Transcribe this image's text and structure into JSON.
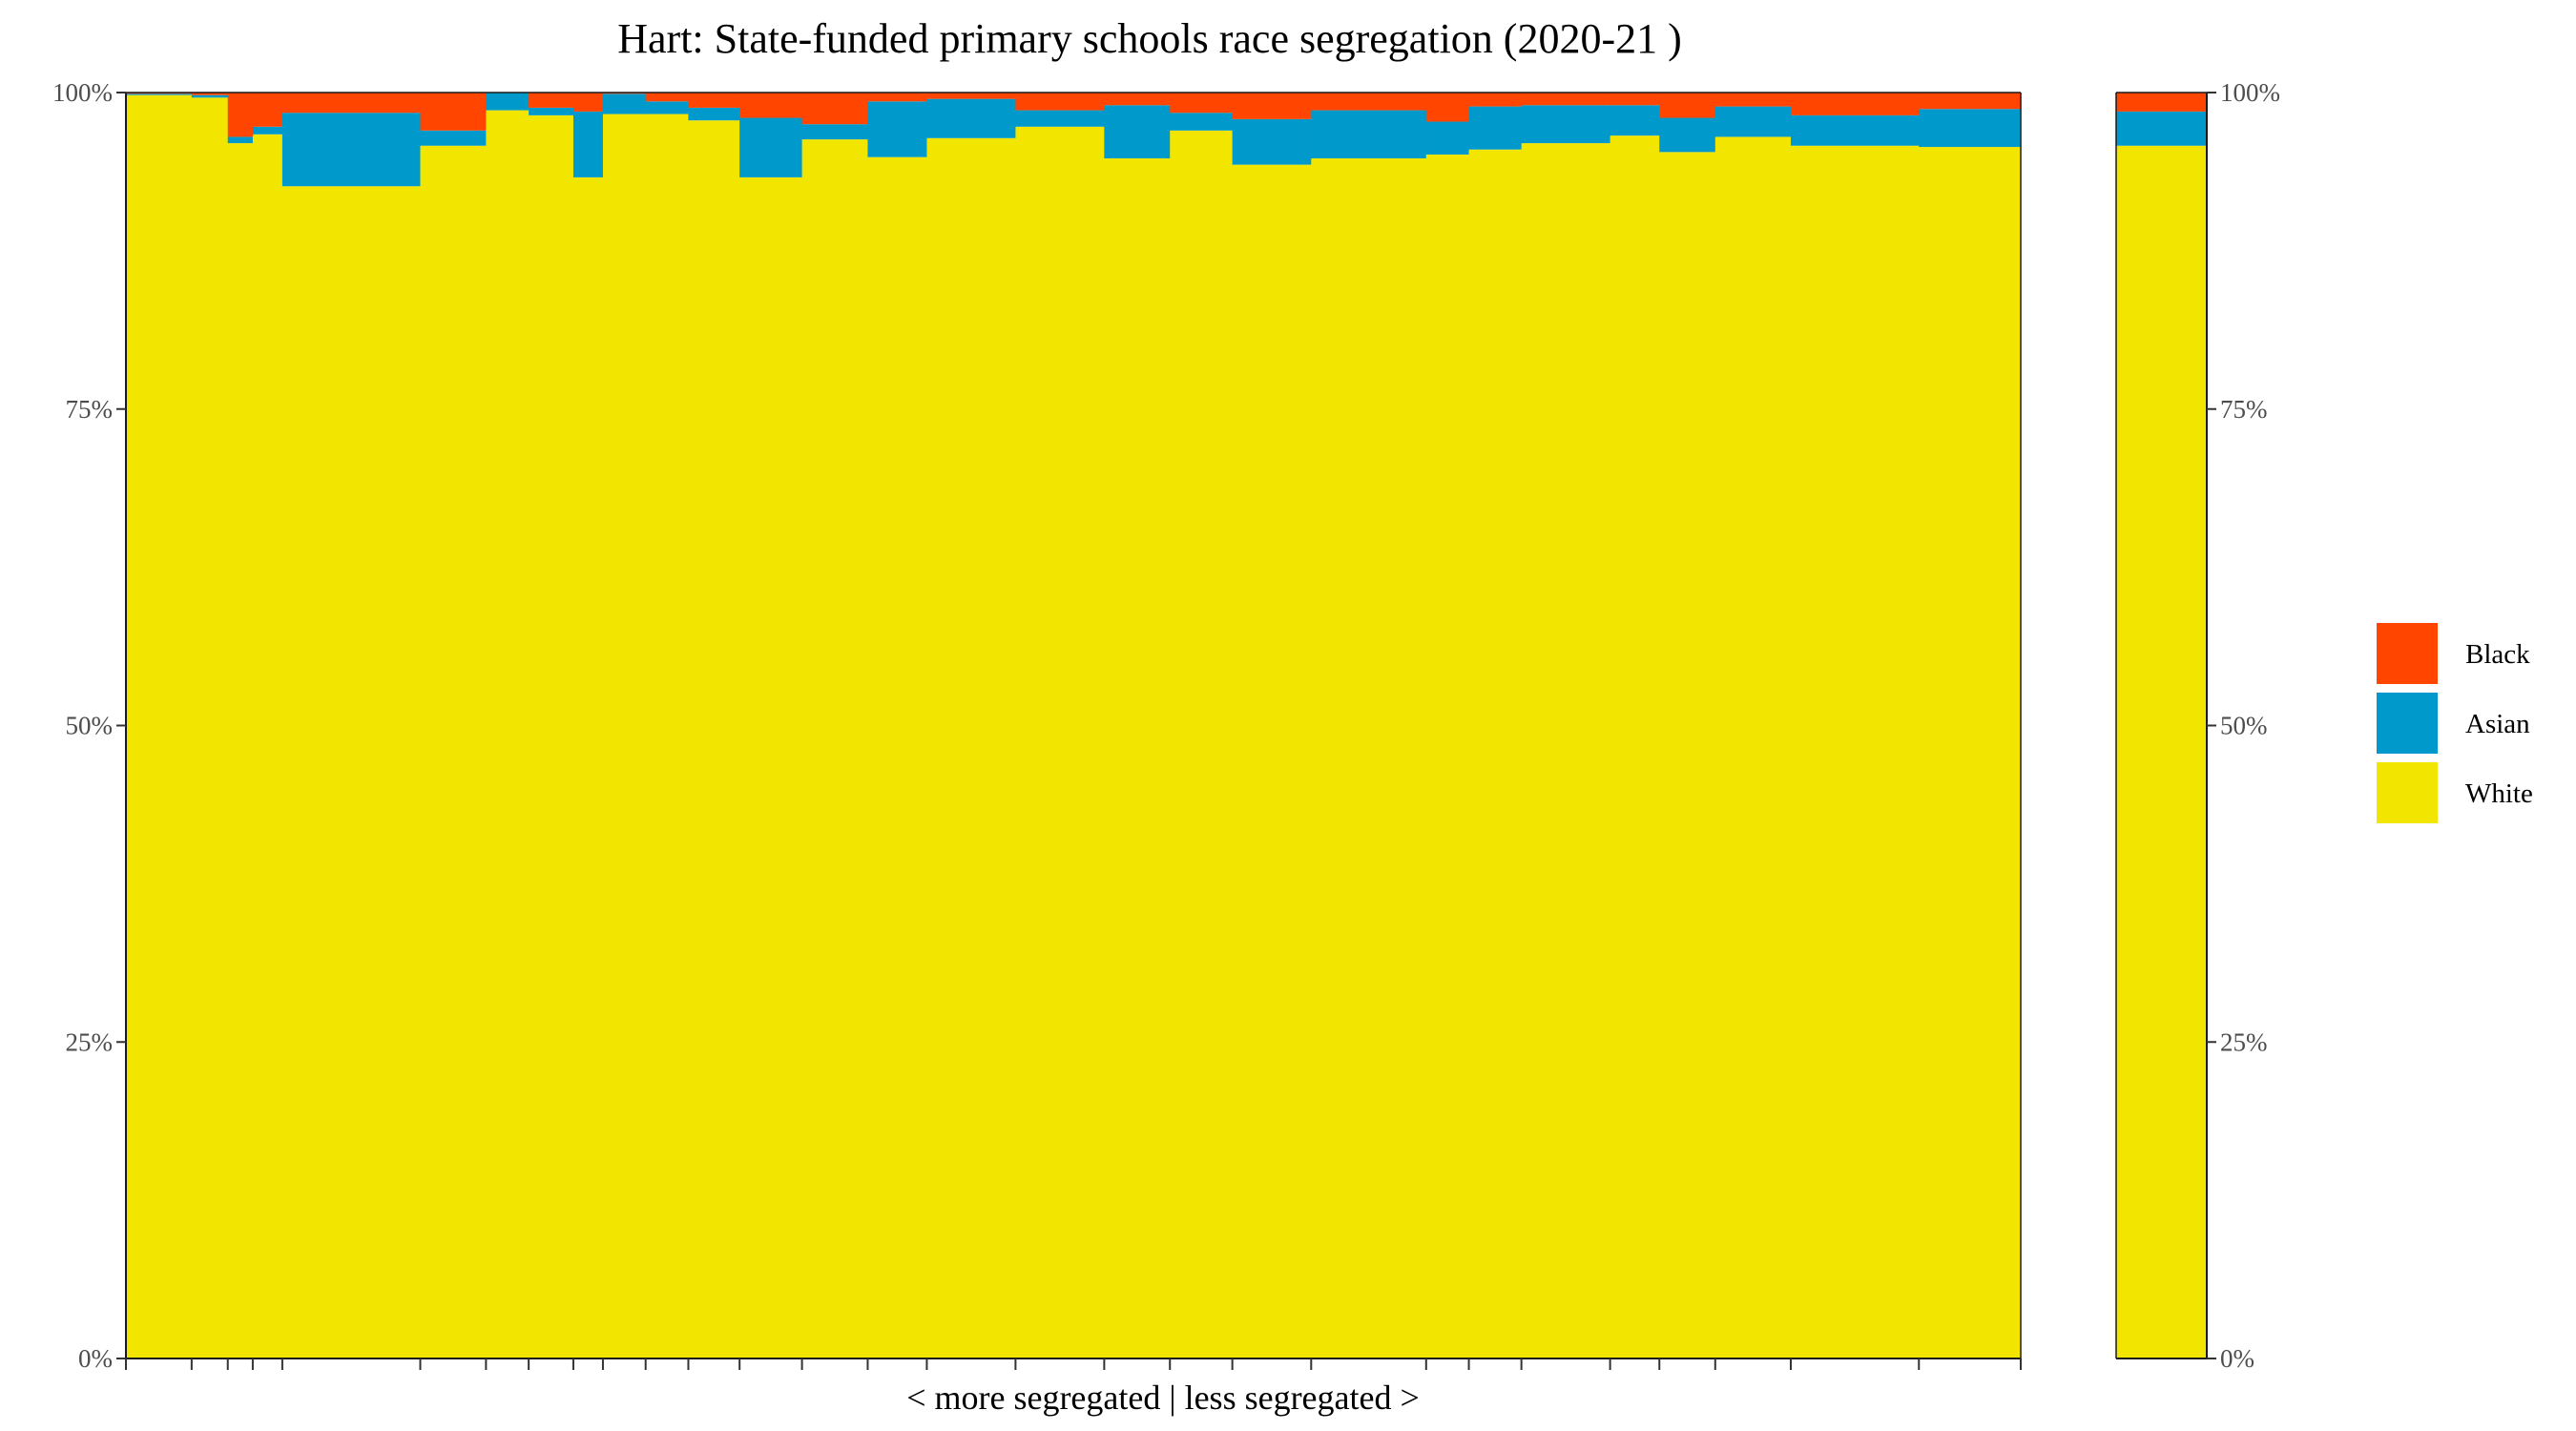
{
  "chart_data": {
    "type": "bar",
    "title": "Hart: State-funded primary schools race segregation (2020-21 )",
    "xlabel": "< more segregated | less segregated >",
    "ylabel": "",
    "ylim": [
      0,
      100
    ],
    "y_ticks": [
      "0%",
      "25%",
      "50%",
      "75%",
      "100%"
    ],
    "stacking": "percent, variable-width bars",
    "colors": {
      "Black": "#FF4500",
      "Asian": "#0099CC",
      "White": "#F2E500"
    },
    "legend": {
      "position": "right",
      "entries": [
        {
          "name": "Black",
          "color": "#FF4500"
        },
        {
          "name": "Asian",
          "color": "#0099CC"
        },
        {
          "name": "White",
          "color": "#F2E500"
        }
      ]
    },
    "series_order": [
      "White",
      "Asian",
      "Black"
    ],
    "schools": [
      {
        "width": 1.0,
        "white": 99.8,
        "asian": 0.1,
        "black": 0.1
      },
      {
        "width": 0.55,
        "white": 99.6,
        "asian": 0.2,
        "black": 0.2
      },
      {
        "width": 0.38,
        "white": 96.0,
        "asian": 0.5,
        "black": 3.5
      },
      {
        "width": 0.45,
        "white": 96.7,
        "asian": 0.6,
        "black": 2.7
      },
      {
        "width": 2.1,
        "white": 92.6,
        "asian": 5.8,
        "black": 1.6
      },
      {
        "width": 1.0,
        "white": 95.8,
        "asian": 1.2,
        "black": 3.0
      },
      {
        "width": 0.65,
        "white": 98.6,
        "asian": 1.4,
        "black": 0.0
      },
      {
        "width": 0.68,
        "white": 98.2,
        "asian": 0.6,
        "black": 1.2
      },
      {
        "width": 0.45,
        "white": 93.3,
        "asian": 5.2,
        "black": 1.5
      },
      {
        "width": 0.65,
        "white": 98.3,
        "asian": 1.6,
        "black": 0.1
      },
      {
        "width": 0.65,
        "white": 98.3,
        "asian": 1.0,
        "black": 0.7
      },
      {
        "width": 0.78,
        "white": 97.8,
        "asian": 1.0,
        "black": 1.2
      },
      {
        "width": 0.95,
        "white": 93.3,
        "asian": 4.7,
        "black": 2.0
      },
      {
        "width": 1.0,
        "white": 96.3,
        "asian": 1.2,
        "black": 2.5
      },
      {
        "width": 0.9,
        "white": 94.9,
        "asian": 4.4,
        "black": 0.7
      },
      {
        "width": 1.35,
        "white": 96.4,
        "asian": 3.1,
        "black": 0.5
      },
      {
        "width": 1.35,
        "white": 97.3,
        "asian": 1.3,
        "black": 1.4
      },
      {
        "width": 1.0,
        "white": 94.8,
        "asian": 4.2,
        "black": 1.0
      },
      {
        "width": 0.95,
        "white": 97.0,
        "asian": 1.4,
        "black": 1.6
      },
      {
        "width": 1.2,
        "white": 94.3,
        "asian": 3.6,
        "black": 2.1
      },
      {
        "width": 1.75,
        "white": 94.8,
        "asian": 3.8,
        "black": 1.4
      },
      {
        "width": 0.65,
        "white": 95.1,
        "asian": 2.6,
        "black": 2.3
      },
      {
        "width": 0.8,
        "white": 95.5,
        "asian": 3.4,
        "black": 1.1
      },
      {
        "width": 1.35,
        "white": 96.0,
        "asian": 3.0,
        "black": 1.0
      },
      {
        "width": 0.75,
        "white": 96.6,
        "asian": 2.4,
        "black": 1.0
      },
      {
        "width": 0.85,
        "white": 95.3,
        "asian": 2.7,
        "black": 2.0
      },
      {
        "width": 1.15,
        "white": 96.5,
        "asian": 2.4,
        "black": 1.1
      },
      {
        "width": 1.95,
        "white": 95.8,
        "asian": 2.4,
        "black": 1.8
      },
      {
        "width": 1.55,
        "white": 95.7,
        "asian": 3.0,
        "black": 1.3
      }
    ],
    "overall": {
      "white": 95.8,
      "asian": 2.7,
      "black": 1.5
    }
  }
}
